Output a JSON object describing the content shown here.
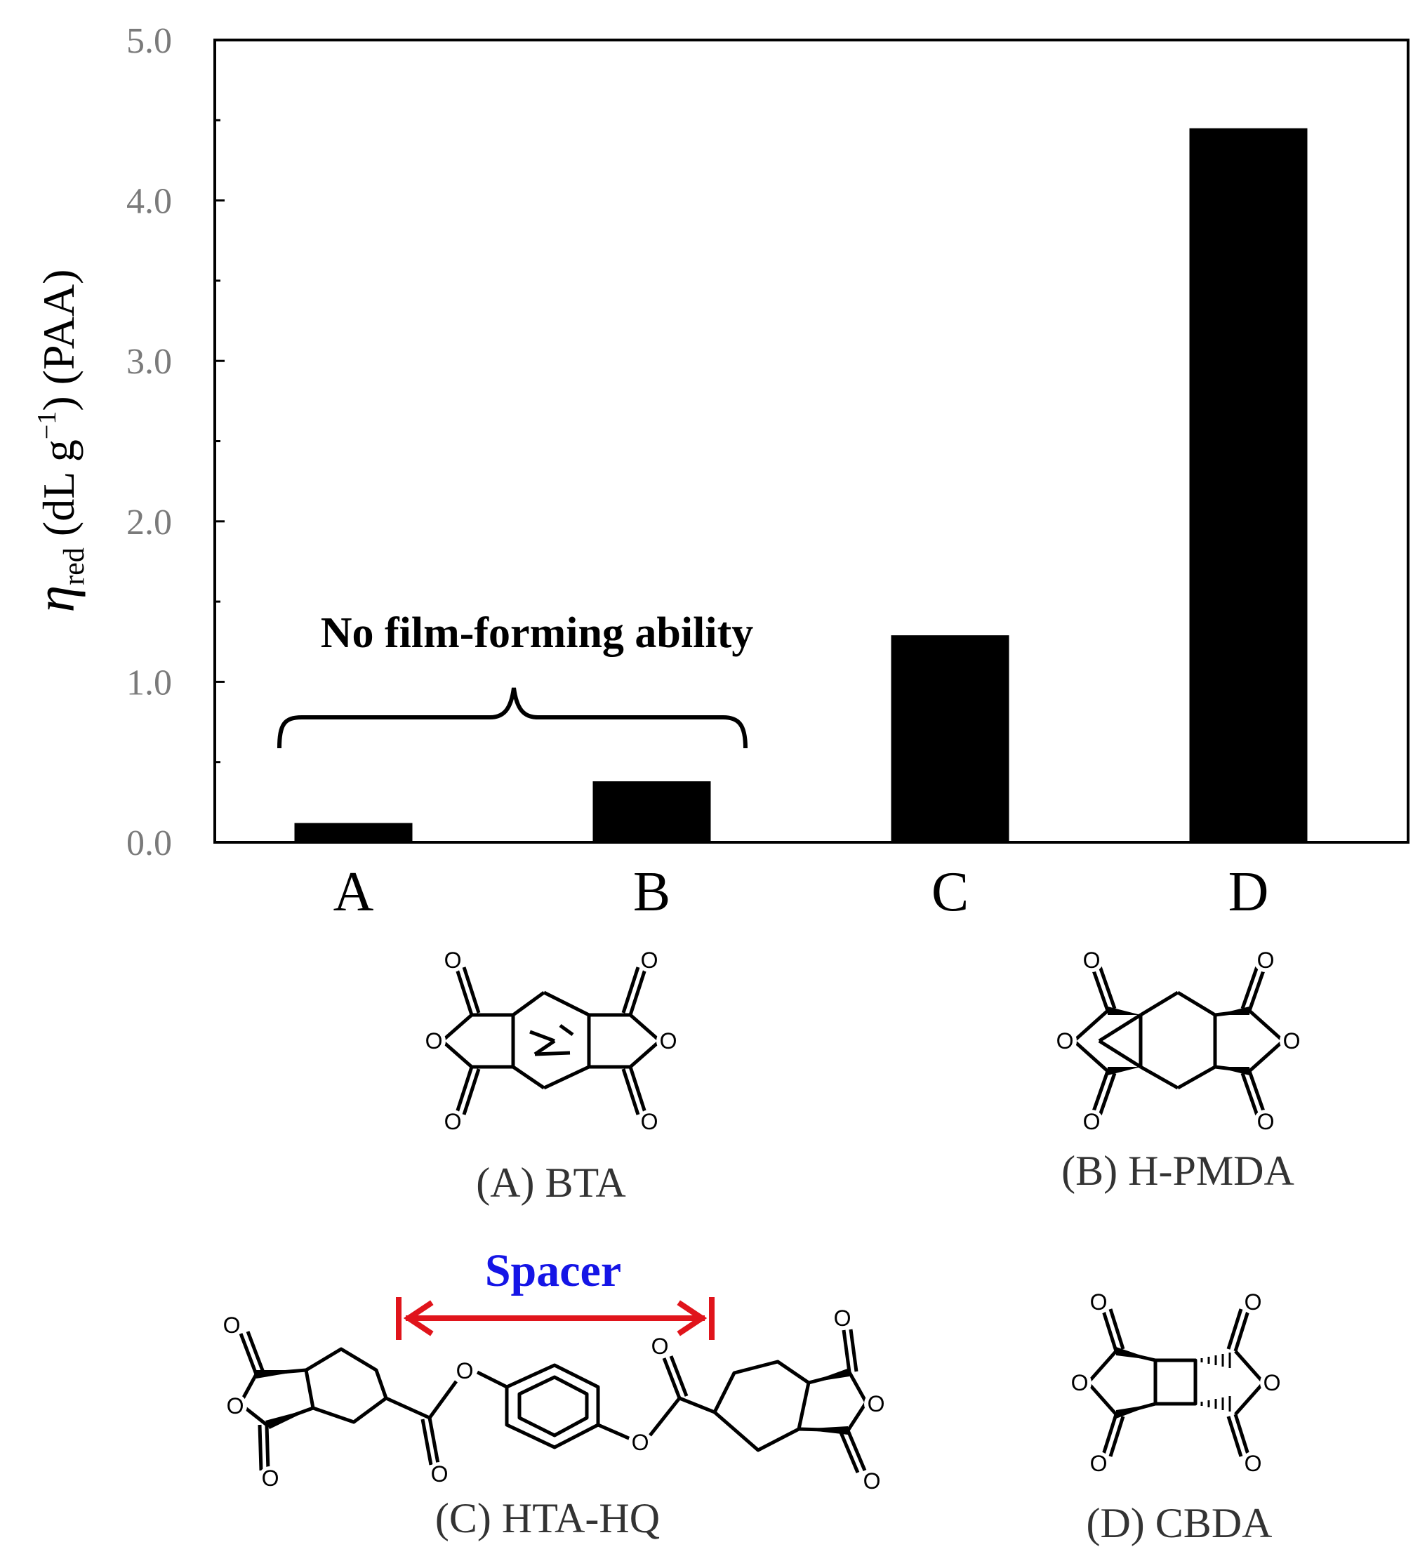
{
  "chart_data": {
    "type": "bar",
    "categories": [
      "A",
      "B",
      "C",
      "D"
    ],
    "values": [
      0.12,
      0.38,
      1.29,
      4.45
    ],
    "title": "",
    "xlabel": "",
    "ylabel": {
      "symbol": "η",
      "subscript": "red",
      "units_open": " (dL g",
      "units_superscript": "−1",
      "units_close": ") (PAA)"
    },
    "ylim": [
      0,
      5.0
    ],
    "yticks": [
      "0.0",
      "1.0",
      "2.0",
      "3.0",
      "4.0",
      "5.0"
    ],
    "grid": false,
    "legend": "none",
    "bar_color": "#000000",
    "annotation": {
      "text": "No film-forming ability",
      "spans": [
        "A",
        "B"
      ]
    }
  },
  "structures": {
    "a_label": "(A) BTA",
    "b_label": "(B) H-PMDA",
    "c_label": "(C) HTA-HQ",
    "d_label": "(D) CBDA",
    "spacer_label": "Spacer",
    "spacer_color": "#1515e6",
    "arrow_color": "#e0141b",
    "atom": "O"
  }
}
